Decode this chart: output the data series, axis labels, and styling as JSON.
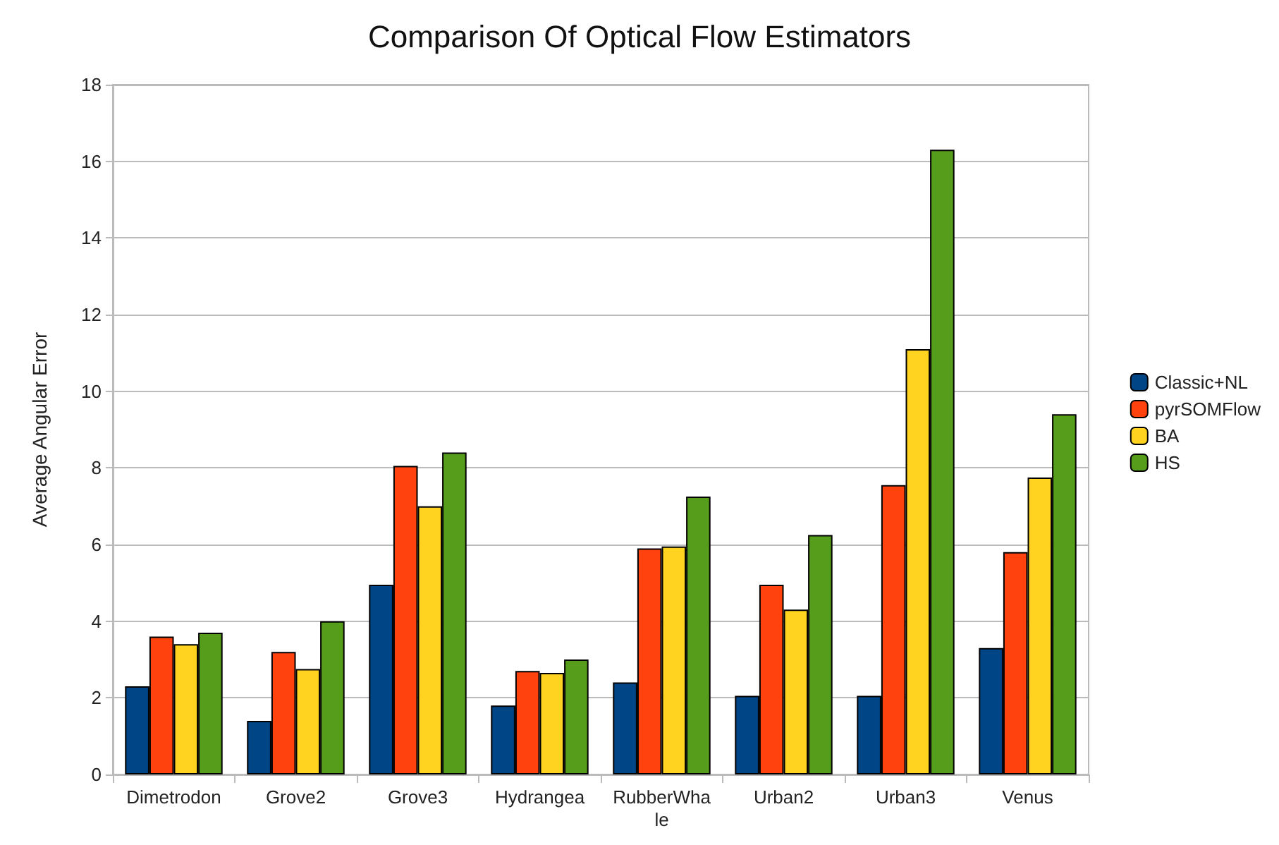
{
  "chart_data": {
    "type": "bar",
    "title": "Comparison Of Optical Flow Estimators",
    "ylabel": "Average Angular Error",
    "categories": [
      "Dimetrodon",
      "Grove2",
      "Grove3",
      "Hydrangea",
      "RubberWhale",
      "Urban2",
      "Urban3",
      "Venus"
    ],
    "series": [
      {
        "name": "Classic+NL",
        "color": "#004586",
        "values": [
          2.3,
          1.4,
          4.95,
          1.8,
          2.4,
          2.05,
          2.05,
          3.3
        ]
      },
      {
        "name": "pyrSOMFlow",
        "color": "#ff420e",
        "values": [
          3.6,
          3.2,
          8.05,
          2.7,
          5.9,
          4.95,
          7.55,
          5.8
        ]
      },
      {
        "name": "BA",
        "color": "#ffd320",
        "values": [
          3.4,
          2.75,
          7.0,
          2.65,
          5.95,
          4.3,
          11.1,
          7.75
        ]
      },
      {
        "name": "HS",
        "color": "#579d1c",
        "values": [
          3.7,
          4.0,
          8.4,
          3.0,
          7.25,
          6.25,
          16.3,
          9.4
        ]
      }
    ],
    "ylim": [
      0,
      18
    ],
    "yticks": [
      0,
      2,
      4,
      6,
      8,
      10,
      12,
      14,
      16,
      18
    ],
    "grid": "y",
    "legend": "right"
  }
}
